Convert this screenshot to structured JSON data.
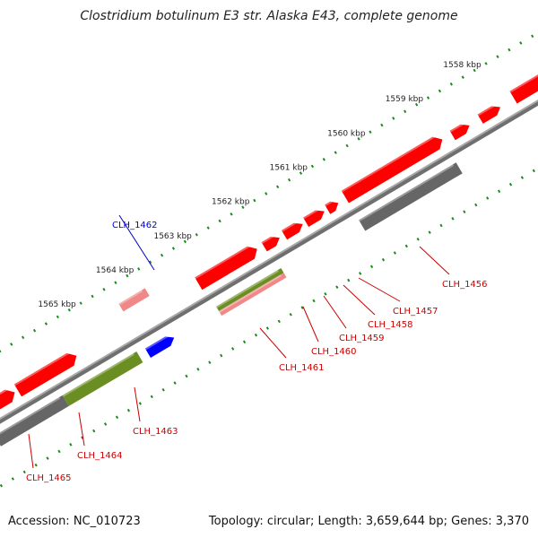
{
  "title": "Clostridium botulinum E3 str. Alaska E43, complete genome",
  "footer": {
    "accession": "Accession: NC_010723",
    "summary": "Topology: circular; Length: 3,659,644 bp; Genes: 3,370"
  },
  "colors": {
    "backbone": "#808080",
    "gene_red": "#ff0000",
    "gene_pink": "#f08888",
    "gene_blue": "#0000ff",
    "gene_olive": "#6b8e23",
    "gene_gray": "#666666",
    "tick": "#1a8a1a",
    "label_red": "#cc0000",
    "label_blue": "#0000cc"
  },
  "scale": {
    "ticks": [
      {
        "label": "1558 kbp"
      },
      {
        "label": "1559 kbp"
      },
      {
        "label": "1560 kbp"
      },
      {
        "label": "1561 kbp"
      },
      {
        "label": "1562 kbp"
      },
      {
        "label": "1563 kbp"
      },
      {
        "label": "1564 kbp"
      },
      {
        "label": "1565 kbp"
      }
    ]
  },
  "genes": [
    {
      "name": "CLH_1456",
      "color": "gray"
    },
    {
      "name": "CLH_1457",
      "color": "red"
    },
    {
      "name": "CLH_1458",
      "color": "red"
    },
    {
      "name": "CLH_1459",
      "color": "red"
    },
    {
      "name": "CLH_1460",
      "color": "red"
    },
    {
      "name": "CLH_1461",
      "color": "olive/pink"
    },
    {
      "name": "CLH_1462",
      "color": "blue"
    },
    {
      "name": "CLH_1463",
      "color": "olive"
    },
    {
      "name": "CLH_1464",
      "color": "gray"
    },
    {
      "name": "CLH_1465",
      "color": "red"
    }
  ]
}
